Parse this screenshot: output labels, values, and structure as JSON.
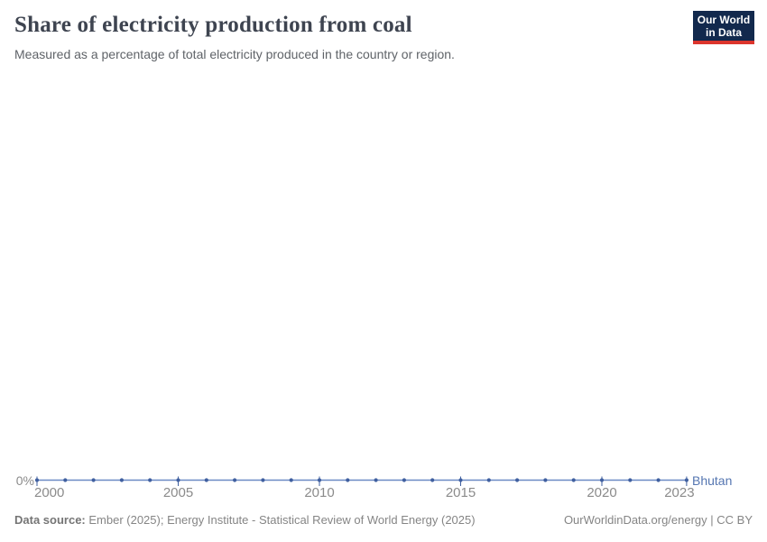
{
  "header": {
    "title": "Share of electricity production from coal",
    "subtitle": "Measured as a percentage of total electricity produced in the country or region.",
    "logo": {
      "line1": "Our World",
      "line2": "in Data",
      "bg_color": "#12294d",
      "bar_color": "#dc352d"
    }
  },
  "chart_data": {
    "type": "line",
    "title": "Share of electricity production from coal",
    "subtitle": "Measured as a percentage of total electricity produced in the country or region.",
    "x": [
      2000,
      2001,
      2002,
      2003,
      2004,
      2005,
      2006,
      2007,
      2008,
      2009,
      2010,
      2011,
      2012,
      2013,
      2014,
      2015,
      2016,
      2017,
      2018,
      2019,
      2020,
      2021,
      2022,
      2023
    ],
    "series": [
      {
        "name": "Bhutan",
        "color": "#5576b1",
        "values": [
          0,
          0,
          0,
          0,
          0,
          0,
          0,
          0,
          0,
          0,
          0,
          0,
          0,
          0,
          0,
          0,
          0,
          0,
          0,
          0,
          0,
          0,
          0,
          0
        ]
      }
    ],
    "x_ticks": [
      2000,
      2005,
      2010,
      2015,
      2020,
      2023
    ],
    "y_ticks": [
      "0%"
    ],
    "unit": "%",
    "grid": false,
    "legend_position": "end-of-line",
    "line_color": "#6b89c4",
    "dot_color": "#3f5f9f",
    "tick_label_color": "#8b8b8b"
  },
  "footer": {
    "source_label": "Data source:",
    "source_text": " Ember (2025); Energy Institute - Statistical Review of World Energy (2025)",
    "link_text": "OurWorldinData.org/energy | CC BY"
  }
}
